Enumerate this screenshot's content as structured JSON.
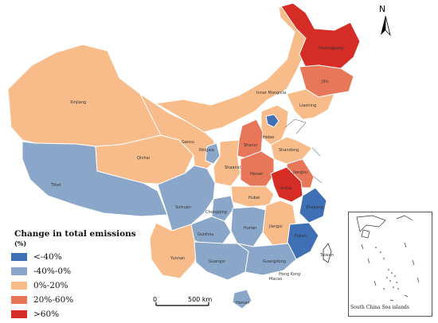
{
  "legend": {
    "title": "Change in total emissions",
    "unit": "(%)",
    "items": [
      {
        "label": "<-40%",
        "color": "#3f6fb5"
      },
      {
        "label": "-40%-0%",
        "color": "#8aa6c8"
      },
      {
        "label": "0%-20%",
        "color": "#f7bc8a"
      },
      {
        "label": "20%-60%",
        "color": "#e8775a"
      },
      {
        "label": ">60%",
        "color": "#d52d26"
      }
    ]
  },
  "north_label": "N",
  "scale_bar": {
    "start": "0",
    "end": "500 km"
  },
  "inset_label": "South China Sea islands",
  "provinces": [
    {
      "name": "Heilongjiang",
      "category": ">60%"
    },
    {
      "name": "Jilin",
      "category": "20%-60%"
    },
    {
      "name": "Liaoning",
      "category": "0%-20%"
    },
    {
      "name": "Inner Mongolia",
      "category": "0%-20%"
    },
    {
      "name": "Xinjiang",
      "category": "0%-20%"
    },
    {
      "name": "Tibet",
      "category": "-40%-0%"
    },
    {
      "name": "Qinhai",
      "category": "0%-20%"
    },
    {
      "name": "Gansu",
      "category": "0%-20%"
    },
    {
      "name": "Ningxia",
      "category": "-40%-0%"
    },
    {
      "name": "Shaanxi",
      "category": "0%-20%"
    },
    {
      "name": "Shanxi",
      "category": "20%-60%"
    },
    {
      "name": "Hebei",
      "category": "0%-20%"
    },
    {
      "name": "Shandong",
      "category": "0%-20%"
    },
    {
      "name": "Henan",
      "category": "20%-60%"
    },
    {
      "name": "Jiangsu",
      "category": "20%-60%"
    },
    {
      "name": "Anhui",
      "category": ">60%"
    },
    {
      "name": "Hubei",
      "category": "0%-20%"
    },
    {
      "name": "Sichuan",
      "category": "-40%-0%"
    },
    {
      "name": "Chongqing",
      "category": "-40%-0%"
    },
    {
      "name": "Yunnan",
      "category": "0%-20%"
    },
    {
      "name": "Guizhou",
      "category": "-40%-0%"
    },
    {
      "name": "Hunan",
      "category": "-40%-0%"
    },
    {
      "name": "Jiangxi",
      "category": "0%-20%"
    },
    {
      "name": "Zhejiang",
      "category": "<-40%"
    },
    {
      "name": "Fujian",
      "category": "<-40%"
    },
    {
      "name": "Guangdong",
      "category": "-40%-0%"
    },
    {
      "name": "Guangxi",
      "category": "-40%-0%"
    },
    {
      "name": "Hainan",
      "category": "-40%-0%"
    },
    {
      "name": "Hong Kong",
      "category": ""
    },
    {
      "name": "Macao",
      "category": ""
    },
    {
      "name": "Taiwan",
      "category": ""
    }
  ]
}
